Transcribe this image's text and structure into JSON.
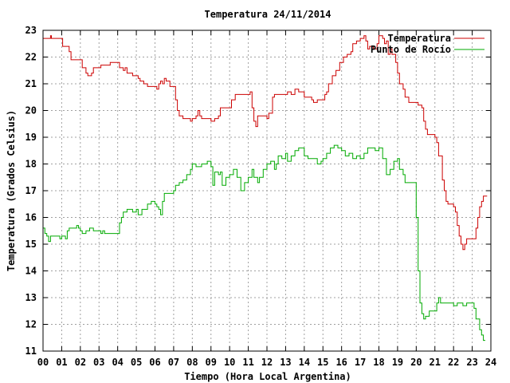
{
  "chart_data": {
    "type": "line",
    "title": "Temperatura 24/11/2014",
    "xlabel": "Tiempo (Hora Local Argentina)",
    "ylabel": "Temperatura (Grados Celsius)",
    "xlim": [
      0,
      24
    ],
    "ylim": [
      11,
      23
    ],
    "x_ticks": [
      "00",
      "01",
      "02",
      "03",
      "04",
      "05",
      "06",
      "07",
      "08",
      "09",
      "10",
      "11",
      "12",
      "13",
      "14",
      "15",
      "16",
      "17",
      "18",
      "19",
      "20",
      "21",
      "22",
      "23",
      "24"
    ],
    "y_ticks": [
      "11",
      "12",
      "13",
      "14",
      "15",
      "16",
      "17",
      "18",
      "19",
      "20",
      "21",
      "22",
      "23"
    ],
    "grid": true,
    "legend_position": "top-right",
    "series": [
      {
        "name": "Temperatura",
        "color": "#cc0000",
        "points": [
          [
            0,
            22.7
          ],
          [
            0.35,
            22.7
          ],
          [
            0.4,
            22.8
          ],
          [
            0.45,
            22.7
          ],
          [
            1.0,
            22.7
          ],
          [
            1.05,
            22.4
          ],
          [
            1.4,
            22.2
          ],
          [
            1.5,
            21.9
          ],
          [
            2.0,
            21.9
          ],
          [
            2.1,
            21.6
          ],
          [
            2.3,
            21.4
          ],
          [
            2.4,
            21.3
          ],
          [
            2.6,
            21.4
          ],
          [
            2.7,
            21.6
          ],
          [
            3.0,
            21.6
          ],
          [
            3.1,
            21.7
          ],
          [
            3.5,
            21.7
          ],
          [
            3.6,
            21.8
          ],
          [
            4.0,
            21.8
          ],
          [
            4.1,
            21.6
          ],
          [
            4.3,
            21.5
          ],
          [
            4.4,
            21.6
          ],
          [
            4.5,
            21.4
          ],
          [
            4.6,
            21.4
          ],
          [
            4.8,
            21.3
          ],
          [
            5.0,
            21.3
          ],
          [
            5.1,
            21.2
          ],
          [
            5.2,
            21.1
          ],
          [
            5.4,
            21.0
          ],
          [
            5.5,
            21.0
          ],
          [
            5.6,
            20.9
          ],
          [
            6.0,
            20.9
          ],
          [
            6.1,
            20.8
          ],
          [
            6.2,
            21.0
          ],
          [
            6.3,
            21.1
          ],
          [
            6.4,
            21.0
          ],
          [
            6.5,
            21.2
          ],
          [
            6.6,
            21.1
          ],
          [
            6.8,
            20.9
          ],
          [
            7.0,
            20.9
          ],
          [
            7.1,
            20.4
          ],
          [
            7.2,
            20.0
          ],
          [
            7.3,
            19.8
          ],
          [
            7.5,
            19.7
          ],
          [
            7.8,
            19.7
          ],
          [
            7.9,
            19.6
          ],
          [
            8.0,
            19.7
          ],
          [
            8.2,
            19.8
          ],
          [
            8.3,
            20.0
          ],
          [
            8.4,
            19.8
          ],
          [
            8.5,
            19.7
          ],
          [
            8.9,
            19.7
          ],
          [
            9.0,
            19.6
          ],
          [
            9.2,
            19.7
          ],
          [
            9.4,
            19.8
          ],
          [
            9.5,
            20.1
          ],
          [
            10.0,
            20.1
          ],
          [
            10.1,
            20.4
          ],
          [
            10.3,
            20.6
          ],
          [
            11.0,
            20.6
          ],
          [
            11.1,
            20.7
          ],
          [
            11.2,
            20.1
          ],
          [
            11.3,
            19.6
          ],
          [
            11.4,
            19.4
          ],
          [
            11.5,
            19.8
          ],
          [
            11.6,
            19.8
          ],
          [
            11.8,
            19.8
          ],
          [
            12.0,
            19.7
          ],
          [
            12.1,
            19.9
          ],
          [
            12.3,
            20.5
          ],
          [
            12.4,
            20.6
          ],
          [
            13.0,
            20.6
          ],
          [
            13.1,
            20.7
          ],
          [
            13.3,
            20.6
          ],
          [
            13.5,
            20.8
          ],
          [
            13.7,
            20.7
          ],
          [
            14.0,
            20.5
          ],
          [
            14.2,
            20.5
          ],
          [
            14.4,
            20.4
          ],
          [
            14.5,
            20.3
          ],
          [
            14.7,
            20.4
          ],
          [
            15.0,
            20.4
          ],
          [
            15.1,
            20.6
          ],
          [
            15.2,
            20.7
          ],
          [
            15.3,
            21.0
          ],
          [
            15.5,
            21.3
          ],
          [
            15.7,
            21.5
          ],
          [
            15.9,
            21.8
          ],
          [
            16.1,
            22.0
          ],
          [
            16.3,
            22.1
          ],
          [
            16.5,
            22.2
          ],
          [
            16.6,
            22.5
          ],
          [
            16.8,
            22.6
          ],
          [
            17.0,
            22.7
          ],
          [
            17.2,
            22.8
          ],
          [
            17.3,
            22.6
          ],
          [
            17.4,
            22.3
          ],
          [
            17.5,
            22.4
          ],
          [
            17.7,
            22.3
          ],
          [
            17.9,
            22.5
          ],
          [
            18.0,
            22.8
          ],
          [
            18.2,
            22.7
          ],
          [
            18.3,
            22.5
          ],
          [
            18.4,
            22.6
          ],
          [
            18.5,
            22.1
          ],
          [
            18.6,
            22.3
          ],
          [
            18.7,
            22.1
          ],
          [
            18.9,
            21.8
          ],
          [
            19.0,
            21.4
          ],
          [
            19.1,
            21.0
          ],
          [
            19.3,
            20.8
          ],
          [
            19.4,
            20.5
          ],
          [
            19.6,
            20.3
          ],
          [
            20.0,
            20.3
          ],
          [
            20.1,
            20.2
          ],
          [
            20.3,
            20.1
          ],
          [
            20.4,
            19.6
          ],
          [
            20.5,
            19.3
          ],
          [
            20.6,
            19.1
          ],
          [
            21.0,
            19.0
          ],
          [
            21.1,
            18.8
          ],
          [
            21.2,
            18.3
          ],
          [
            21.4,
            17.4
          ],
          [
            21.5,
            17.0
          ],
          [
            21.6,
            16.6
          ],
          [
            21.7,
            16.5
          ],
          [
            22.0,
            16.4
          ],
          [
            22.1,
            16.2
          ],
          [
            22.2,
            15.7
          ],
          [
            22.3,
            15.3
          ],
          [
            22.4,
            15.0
          ],
          [
            22.5,
            14.8
          ],
          [
            22.6,
            15.0
          ],
          [
            22.7,
            15.2
          ],
          [
            23.1,
            15.2
          ],
          [
            23.2,
            15.6
          ],
          [
            23.3,
            16.0
          ],
          [
            23.4,
            16.4
          ],
          [
            23.5,
            16.6
          ],
          [
            23.6,
            16.8
          ],
          [
            23.8,
            16.8
          ]
        ]
      },
      {
        "name": "Punto de Rocío",
        "color": "#00aa00",
        "points": [
          [
            0,
            15.6
          ],
          [
            0.1,
            15.4
          ],
          [
            0.2,
            15.3
          ],
          [
            0.3,
            15.1
          ],
          [
            0.4,
            15.3
          ],
          [
            0.6,
            15.3
          ],
          [
            0.8,
            15.3
          ],
          [
            0.9,
            15.2
          ],
          [
            1.0,
            15.3
          ],
          [
            1.2,
            15.2
          ],
          [
            1.3,
            15.5
          ],
          [
            1.4,
            15.6
          ],
          [
            1.6,
            15.6
          ],
          [
            1.8,
            15.7
          ],
          [
            1.9,
            15.6
          ],
          [
            2.0,
            15.5
          ],
          [
            2.1,
            15.4
          ],
          [
            2.3,
            15.5
          ],
          [
            2.5,
            15.6
          ],
          [
            2.7,
            15.5
          ],
          [
            3.0,
            15.5
          ],
          [
            3.1,
            15.4
          ],
          [
            3.2,
            15.5
          ],
          [
            3.3,
            15.4
          ],
          [
            4.0,
            15.4
          ],
          [
            4.1,
            15.8
          ],
          [
            4.2,
            16.0
          ],
          [
            4.3,
            16.2
          ],
          [
            4.5,
            16.3
          ],
          [
            4.8,
            16.2
          ],
          [
            5.0,
            16.3
          ],
          [
            5.1,
            16.1
          ],
          [
            5.3,
            16.3
          ],
          [
            5.6,
            16.5
          ],
          [
            5.8,
            16.6
          ],
          [
            6.0,
            16.5
          ],
          [
            6.1,
            16.4
          ],
          [
            6.2,
            16.3
          ],
          [
            6.3,
            16.1
          ],
          [
            6.4,
            16.6
          ],
          [
            6.5,
            16.9
          ],
          [
            7.0,
            17.0
          ],
          [
            7.1,
            17.2
          ],
          [
            7.3,
            17.3
          ],
          [
            7.5,
            17.4
          ],
          [
            7.7,
            17.6
          ],
          [
            7.9,
            17.8
          ],
          [
            8.0,
            18.0
          ],
          [
            8.2,
            17.9
          ],
          [
            8.5,
            18.0
          ],
          [
            8.8,
            18.1
          ],
          [
            9.0,
            17.9
          ],
          [
            9.1,
            17.2
          ],
          [
            9.2,
            17.7
          ],
          [
            9.4,
            17.6
          ],
          [
            9.5,
            17.7
          ],
          [
            9.6,
            17.2
          ],
          [
            9.8,
            17.5
          ],
          [
            10.0,
            17.6
          ],
          [
            10.2,
            17.8
          ],
          [
            10.4,
            17.5
          ],
          [
            10.6,
            17.0
          ],
          [
            10.8,
            17.3
          ],
          [
            11.0,
            17.5
          ],
          [
            11.2,
            17.8
          ],
          [
            11.3,
            17.5
          ],
          [
            11.5,
            17.3
          ],
          [
            11.6,
            17.5
          ],
          [
            11.8,
            17.8
          ],
          [
            12.0,
            18.0
          ],
          [
            12.2,
            18.1
          ],
          [
            12.4,
            17.8
          ],
          [
            12.5,
            18.0
          ],
          [
            12.6,
            18.3
          ],
          [
            12.8,
            18.2
          ],
          [
            13.0,
            18.4
          ],
          [
            13.1,
            18.1
          ],
          [
            13.3,
            18.3
          ],
          [
            13.5,
            18.5
          ],
          [
            13.7,
            18.6
          ],
          [
            14.0,
            18.3
          ],
          [
            14.2,
            18.2
          ],
          [
            14.5,
            18.2
          ],
          [
            14.7,
            18.0
          ],
          [
            14.9,
            18.1
          ],
          [
            15.0,
            18.2
          ],
          [
            15.2,
            18.4
          ],
          [
            15.4,
            18.6
          ],
          [
            15.6,
            18.7
          ],
          [
            15.8,
            18.6
          ],
          [
            16.0,
            18.5
          ],
          [
            16.2,
            18.3
          ],
          [
            16.4,
            18.4
          ],
          [
            16.6,
            18.2
          ],
          [
            16.8,
            18.3
          ],
          [
            17.0,
            18.2
          ],
          [
            17.2,
            18.4
          ],
          [
            17.4,
            18.6
          ],
          [
            17.6,
            18.6
          ],
          [
            17.8,
            18.5
          ],
          [
            18.0,
            18.6
          ],
          [
            18.2,
            18.2
          ],
          [
            18.4,
            17.6
          ],
          [
            18.6,
            17.8
          ],
          [
            18.8,
            18.1
          ],
          [
            19.0,
            18.2
          ],
          [
            19.1,
            17.8
          ],
          [
            19.3,
            17.6
          ],
          [
            19.4,
            17.3
          ],
          [
            19.7,
            17.3
          ],
          [
            19.9,
            17.3
          ],
          [
            20.0,
            16.0
          ],
          [
            20.1,
            14.0
          ],
          [
            20.2,
            12.8
          ],
          [
            20.3,
            12.4
          ],
          [
            20.4,
            12.2
          ],
          [
            20.5,
            12.3
          ],
          [
            20.7,
            12.5
          ],
          [
            20.9,
            12.5
          ],
          [
            21.0,
            12.5
          ],
          [
            21.1,
            12.8
          ],
          [
            21.2,
            13.0
          ],
          [
            21.3,
            12.8
          ],
          [
            21.5,
            12.8
          ],
          [
            21.8,
            12.8
          ],
          [
            22.0,
            12.7
          ],
          [
            22.2,
            12.8
          ],
          [
            22.5,
            12.7
          ],
          [
            22.7,
            12.8
          ],
          [
            23.0,
            12.8
          ],
          [
            23.1,
            12.6
          ],
          [
            23.2,
            12.2
          ],
          [
            23.4,
            11.8
          ],
          [
            23.5,
            11.6
          ],
          [
            23.6,
            11.4
          ],
          [
            23.7,
            11.4
          ]
        ]
      }
    ]
  }
}
